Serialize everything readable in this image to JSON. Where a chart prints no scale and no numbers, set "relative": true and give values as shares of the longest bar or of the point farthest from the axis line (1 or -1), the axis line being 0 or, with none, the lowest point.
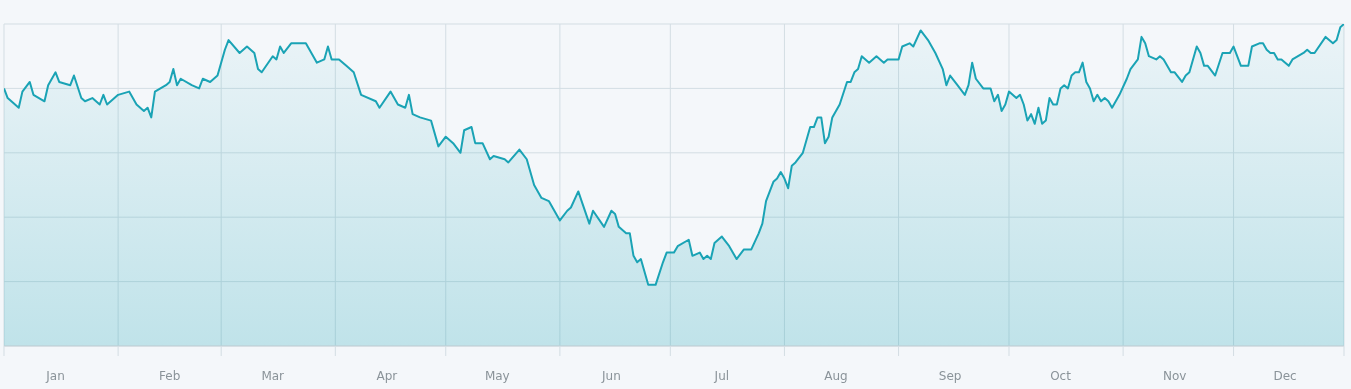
{
  "chart_data": {
    "type": "area",
    "relative": true,
    "grid": true,
    "xlim": [
      "--01-01",
      "--12-31"
    ],
    "xticks": [
      {
        "value": "--01-01",
        "label": null
      },
      {
        "value": "--01-15",
        "label": "Jan"
      },
      {
        "value": "--02-01",
        "label": null
      },
      {
        "value": "--02-15",
        "label": "Feb"
      },
      {
        "value": "--03-01",
        "label": null
      },
      {
        "value": "--03-15",
        "label": "Mar"
      },
      {
        "value": "--04-01",
        "label": null
      },
      {
        "value": "--04-15",
        "label": "Apr"
      },
      {
        "value": "--05-01",
        "label": null
      },
      {
        "value": "--05-15",
        "label": "May"
      },
      {
        "value": "--06-01",
        "label": null
      },
      {
        "value": "--06-15",
        "label": "Jun"
      },
      {
        "value": "--07-01",
        "label": null
      },
      {
        "value": "--07-15",
        "label": "Jul"
      },
      {
        "value": "--08-01",
        "label": null
      },
      {
        "value": "--08-15",
        "label": "Aug"
      },
      {
        "value": "--09-01",
        "label": null
      },
      {
        "value": "--09-15",
        "label": "Sep"
      },
      {
        "value": "--10-01",
        "label": null
      },
      {
        "value": "--10-15",
        "label": "Oct"
      },
      {
        "value": "--11-01",
        "label": null
      },
      {
        "value": "--11-15",
        "label": "Nov"
      },
      {
        "value": "--12-01",
        "label": null
      },
      {
        "value": "--12-15",
        "label": "Dec"
      },
      {
        "value": "--12-31",
        "label": null
      }
    ],
    "x": [
      "--01-01",
      "--01-02",
      "--01-05",
      "--01-06",
      "--01-08",
      "--01-09",
      "--01-12",
      "--01-13",
      "--01-15",
      "--01-16",
      "--01-19",
      "--01-20",
      "--01-22",
      "--01-23",
      "--01-25",
      "--01-27",
      "--01-28",
      "--01-29",
      "--02-01",
      "--02-04",
      "--02-06",
      "--02-08",
      "--02-09",
      "--02-10",
      "--02-11",
      "--02-14",
      "--02-15",
      "--02-16",
      "--02-17",
      "--02-18",
      "--02-21",
      "--02-23",
      "--02-24",
      "--02-26",
      "--02-28",
      "--03-02",
      "--03-03",
      "--03-06",
      "--03-08",
      "--03-10",
      "--03-11",
      "--03-12",
      "--03-15",
      "--03-16",
      "--03-17",
      "--03-18",
      "--03-20",
      "--03-22",
      "--03-24",
      "--03-25",
      "--03-27",
      "--03-29",
      "--03-30",
      "--03-31",
      "--04-02",
      "--04-04",
      "--04-06",
      "--04-08",
      "--04-12",
      "--04-13",
      "--04-16",
      "--04-18",
      "--04-20",
      "--04-21",
      "--04-22",
      "--04-24",
      "--04-27",
      "--04-29",
      "--05-01",
      "--05-03",
      "--05-05",
      "--05-06",
      "--05-08",
      "--05-09",
      "--05-11",
      "--05-13",
      "--05-14",
      "--05-17",
      "--05-18",
      "--05-21",
      "--05-23",
      "--05-25",
      "--05-27",
      "--05-29",
      "--06-01",
      "--06-03",
      "--06-04",
      "--06-06",
      "--06-09",
      "--06-10",
      "--06-13",
      "--06-15",
      "--06-16",
      "--06-17",
      "--06-19",
      "--06-20",
      "--06-21",
      "--06-22",
      "--06-23",
      "--06-25",
      "--06-27",
      "--06-29",
      "--06-30",
      "--07-02",
      "--07-03",
      "--07-06",
      "--07-07",
      "--07-09",
      "--07-10",
      "--07-11",
      "--07-12",
      "--07-13",
      "--07-15",
      "--07-17",
      "--07-19",
      "--07-21",
      "--07-23",
      "--07-25",
      "--07-26",
      "--07-27",
      "--07-29",
      "--07-30",
      "--07-31",
      "--08-01",
      "--08-02",
      "--08-03",
      "--08-04",
      "--08-06",
      "--08-08",
      "--08-09",
      "--08-10",
      "--08-11",
      "--08-12",
      "--08-13",
      "--08-14",
      "--08-16",
      "--08-18",
      "--08-19",
      "--08-20",
      "--08-21",
      "--08-22",
      "--08-24",
      "--08-26",
      "--08-28",
      "--08-29",
      "--08-31",
      "--09-01",
      "--09-02",
      "--09-04",
      "--09-05",
      "--09-07",
      "--09-09",
      "--09-11",
      "--09-13",
      "--09-14",
      "--09-15",
      "--09-17",
      "--09-19",
      "--09-20",
      "--09-21",
      "--09-22",
      "--09-24",
      "--09-26",
      "--09-27",
      "--09-28",
      "--09-29",
      "--09-30",
      "--10-01",
      "--10-03",
      "--10-04",
      "--10-05",
      "--10-06",
      "--10-07",
      "--10-08",
      "--10-09",
      "--10-10",
      "--10-11",
      "--10-12",
      "--10-13",
      "--10-14",
      "--10-15",
      "--10-16",
      "--10-17",
      "--10-18",
      "--10-19",
      "--10-20",
      "--10-21",
      "--10-22",
      "--10-23",
      "--10-24",
      "--10-25",
      "--10-26",
      "--10-27",
      "--10-28",
      "--10-29",
      "--10-31",
      "--11-02",
      "--11-03",
      "--11-05",
      "--11-06",
      "--11-07",
      "--11-08",
      "--11-10",
      "--11-11",
      "--11-12",
      "--11-14",
      "--11-15",
      "--11-17",
      "--11-18",
      "--11-19",
      "--11-21",
      "--11-22",
      "--11-23",
      "--11-24",
      "--11-26",
      "--11-28",
      "--11-29",
      "--11-30",
      "--12-01",
      "--12-03",
      "--12-05",
      "--12-06",
      "--12-08",
      "--12-09",
      "--12-10",
      "--12-11",
      "--12-12",
      "--12-13",
      "--12-14",
      "--12-16",
      "--12-17",
      "--12-20",
      "--12-21",
      "--12-22",
      "--12-23",
      "--12-26",
      "--12-28",
      "--12-29",
      "--12-30",
      "--12-31"
    ],
    "series": [
      {
        "color": "#1aa3b5",
        "values": [
          0.8,
          0.77,
          0.74,
          0.79,
          0.82,
          0.78,
          0.76,
          0.81,
          0.85,
          0.82,
          0.81,
          0.84,
          0.77,
          0.76,
          0.77,
          0.75,
          0.78,
          0.75,
          0.78,
          0.79,
          0.75,
          0.73,
          0.74,
          0.71,
          0.79,
          0.81,
          0.82,
          0.86,
          0.81,
          0.83,
          0.81,
          0.8,
          0.83,
          0.82,
          0.84,
          0.92,
          0.95,
          0.91,
          0.93,
          0.91,
          0.86,
          0.85,
          0.9,
          0.89,
          0.93,
          0.91,
          0.94,
          0.94,
          0.94,
          0.92,
          0.88,
          0.89,
          0.93,
          0.89,
          0.89,
          0.87,
          0.85,
          0.78,
          0.76,
          0.74,
          0.79,
          0.75,
          0.74,
          0.78,
          0.72,
          0.71,
          0.7,
          0.62,
          0.65,
          0.63,
          0.6,
          0.67,
          0.68,
          0.63,
          0.63,
          0.58,
          0.59,
          0.58,
          0.57,
          0.61,
          0.58,
          0.5,
          0.46,
          0.45,
          0.39,
          0.42,
          0.43,
          0.48,
          0.38,
          0.42,
          0.37,
          0.42,
          0.41,
          0.37,
          0.35,
          0.35,
          0.28,
          0.26,
          0.27,
          0.19,
          0.19,
          0.26,
          0.29,
          0.29,
          0.31,
          0.33,
          0.28,
          0.29,
          0.27,
          0.28,
          0.27,
          0.32,
          0.34,
          0.31,
          0.27,
          0.3,
          0.3,
          0.35,
          0.38,
          0.45,
          0.51,
          0.52,
          0.54,
          0.52,
          0.49,
          0.56,
          0.57,
          0.6,
          0.68,
          0.68,
          0.71,
          0.71,
          0.63,
          0.65,
          0.71,
          0.75,
          0.82,
          0.82,
          0.85,
          0.86,
          0.9,
          0.88,
          0.9,
          0.88,
          0.89,
          0.89,
          0.89,
          0.93,
          0.94,
          0.93,
          0.98,
          0.95,
          0.91,
          0.86,
          0.81,
          0.84,
          0.81,
          0.78,
          0.81,
          0.88,
          0.83,
          0.8,
          0.8,
          0.76,
          0.78,
          0.73,
          0.75,
          0.79,
          0.77,
          0.78,
          0.75,
          0.7,
          0.72,
          0.69,
          0.74,
          0.69,
          0.7,
          0.77,
          0.75,
          0.75,
          0.8,
          0.81,
          0.8,
          0.84,
          0.85,
          0.85,
          0.88,
          0.82,
          0.8,
          0.76,
          0.78,
          0.76,
          0.77,
          0.76,
          0.74,
          0.78,
          0.83,
          0.86,
          0.89,
          0.96,
          0.94,
          0.9,
          0.89,
          0.9,
          0.89,
          0.85,
          0.85,
          0.82,
          0.84,
          0.85,
          0.93,
          0.91,
          0.87,
          0.87,
          0.84,
          0.91,
          0.91,
          0.91,
          0.93,
          0.87,
          0.87,
          0.93,
          0.94,
          0.94,
          0.92,
          0.91,
          0.91,
          0.89,
          0.89,
          0.87,
          0.89,
          0.91,
          0.92,
          0.91,
          0.91,
          0.96,
          0.94,
          0.95,
          0.99,
          1.0
        ]
      }
    ]
  }
}
